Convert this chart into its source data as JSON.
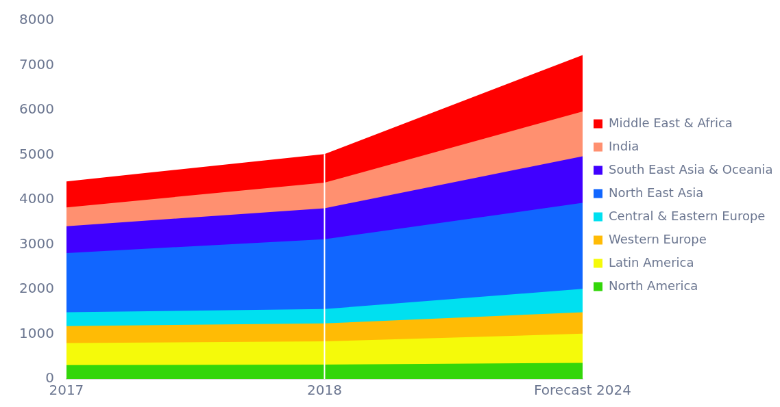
{
  "chart_data": {
    "type": "area",
    "stacked": true,
    "categories": [
      "2017",
      "2018",
      "Forecast 2024"
    ],
    "series": [
      {
        "name": "North America",
        "color": "#33d60a",
        "values": [
          310,
          320,
          360
        ]
      },
      {
        "name": "Latin America",
        "color": "#f5fa0a",
        "values": [
          490,
          520,
          650
        ]
      },
      {
        "name": "Western Europe",
        "color": "#ffbb05",
        "values": [
          380,
          400,
          480
        ]
      },
      {
        "name": "Central & Eastern Europe",
        "color": "#00e0f0",
        "values": [
          310,
          320,
          520
        ]
      },
      {
        "name": "North East Asia",
        "color": "#1166ff",
        "values": [
          1320,
          1560,
          1920
        ]
      },
      {
        "name": "South East Asia & Oceania",
        "color": "#4000ff",
        "values": [
          600,
          690,
          1040
        ]
      },
      {
        "name": "India",
        "color": "#ff9070",
        "values": [
          420,
          570,
          1000
        ]
      },
      {
        "name": "Middle East & Africa",
        "color": "#ff0000",
        "values": [
          580,
          640,
          1260
        ]
      }
    ],
    "ylim": [
      0,
      8000
    ],
    "yticks": [
      0,
      1000,
      2000,
      3000,
      4000,
      5000,
      6000,
      7000,
      8000
    ],
    "grid": false,
    "legend": "right",
    "ref_lines": [
      {
        "axis": "x",
        "value": "2018",
        "color": "#ffffff"
      }
    ]
  }
}
